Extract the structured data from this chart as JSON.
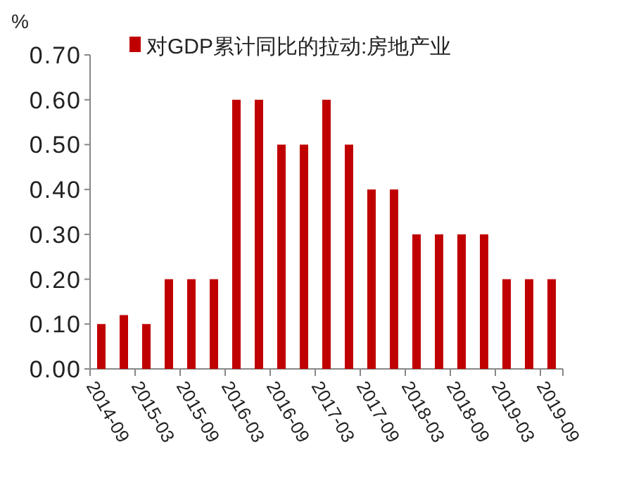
{
  "chart_data": {
    "type": "bar",
    "ylabel": "%",
    "categories": [
      "2014-09",
      null,
      "2015-03",
      null,
      "2015-09",
      null,
      "2016-03",
      null,
      "2016-09",
      null,
      "2017-03",
      null,
      "2017-09",
      null,
      "2018-03",
      null,
      "2018-09",
      null,
      "2019-03",
      null,
      "2019-09"
    ],
    "series": [
      {
        "name": "对GDP累计同比的拉动:房地产业",
        "color": "#c00000",
        "values": [
          0.1,
          0.12,
          0.1,
          0.2,
          0.2,
          0.2,
          0.6,
          0.6,
          0.5,
          0.5,
          0.6,
          0.5,
          0.4,
          0.4,
          0.3,
          0.3,
          0.3,
          0.3,
          0.2,
          0.2,
          0.2
        ]
      }
    ],
    "ylim": [
      0,
      0.7
    ],
    "yticks": [
      {
        "value": 0,
        "label": "0.00"
      },
      {
        "value": 0.1,
        "label": "0.10"
      },
      {
        "value": 0.2,
        "label": "0.20"
      },
      {
        "value": 0.3,
        "label": "0.30"
      },
      {
        "value": 0.4,
        "label": "0.40"
      },
      {
        "value": 0.5,
        "label": "0.50"
      },
      {
        "value": 0.6,
        "label": "0.60"
      },
      {
        "value": 0.7,
        "label": "0.70"
      }
    ],
    "grid": false,
    "legend": "top"
  }
}
